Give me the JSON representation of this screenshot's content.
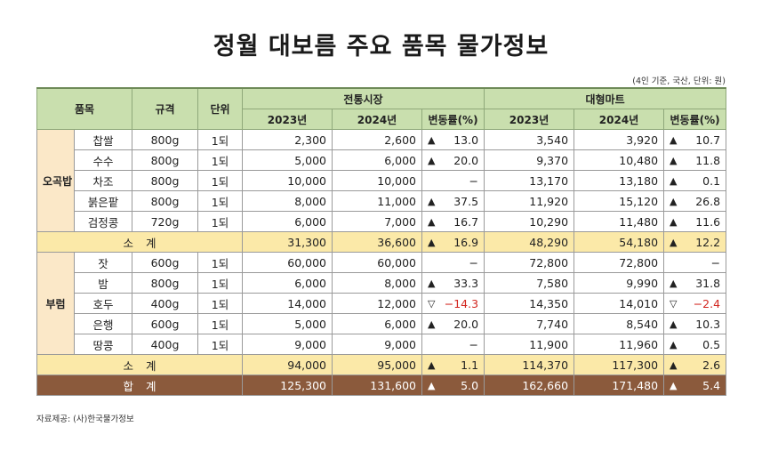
{
  "title": "정월 대보름 주요 품목 물가정보",
  "unit_note": "(4인 기준, 국산, 단위: 원)",
  "source": "자료제공: (사)한국물가정보",
  "headers": {
    "item": "품목",
    "spec": "규격",
    "unit": "단위",
    "market": "전통시장",
    "mart": "대형마트",
    "y2023": "2023년",
    "y2024": "2024년",
    "change": "변동률(%)"
  },
  "groups": [
    {
      "name": "오곡밥",
      "rows": [
        {
          "item": "찹쌀",
          "spec": "800g",
          "unit": "1되",
          "m2023": "2,300",
          "m2024": "2,600",
          "m_arrow": "▲",
          "m_chg": "13.0",
          "t2023": "3,540",
          "t2024": "3,920",
          "t_arrow": "▲",
          "t_chg": "10.7"
        },
        {
          "item": "수수",
          "spec": "800g",
          "unit": "1되",
          "m2023": "5,000",
          "m2024": "6,000",
          "m_arrow": "▲",
          "m_chg": "20.0",
          "t2023": "9,370",
          "t2024": "10,480",
          "t_arrow": "▲",
          "t_chg": "11.8"
        },
        {
          "item": "차조",
          "spec": "800g",
          "unit": "1되",
          "m2023": "10,000",
          "m2024": "10,000",
          "m_arrow": "",
          "m_chg": "−",
          "t2023": "13,170",
          "t2024": "13,180",
          "t_arrow": "▲",
          "t_chg": "0.1"
        },
        {
          "item": "붉은팥",
          "spec": "800g",
          "unit": "1되",
          "m2023": "8,000",
          "m2024": "11,000",
          "m_arrow": "▲",
          "m_chg": "37.5",
          "t2023": "11,920",
          "t2024": "15,120",
          "t_arrow": "▲",
          "t_chg": "26.8"
        },
        {
          "item": "검정콩",
          "spec": "720g",
          "unit": "1되",
          "m2023": "6,000",
          "m2024": "7,000",
          "m_arrow": "▲",
          "m_chg": "16.7",
          "t2023": "10,290",
          "t2024": "11,480",
          "t_arrow": "▲",
          "t_chg": "11.6"
        }
      ],
      "subtotal": {
        "label": "소계",
        "m2023": "31,300",
        "m2024": "36,600",
        "m_arrow": "▲",
        "m_chg": "16.9",
        "t2023": "48,290",
        "t2024": "54,180",
        "t_arrow": "▲",
        "t_chg": "12.2"
      }
    },
    {
      "name": "부럼",
      "rows": [
        {
          "item": "잣",
          "spec": "600g",
          "unit": "1되",
          "m2023": "60,000",
          "m2024": "60,000",
          "m_arrow": "",
          "m_chg": "−",
          "t2023": "72,800",
          "t2024": "72,800",
          "t_arrow": "",
          "t_chg": "−"
        },
        {
          "item": "밤",
          "spec": "800g",
          "unit": "1되",
          "m2023": "6,000",
          "m2024": "8,000",
          "m_arrow": "▲",
          "m_chg": "33.3",
          "t2023": "7,580",
          "t2024": "9,990",
          "t_arrow": "▲",
          "t_chg": "31.8"
        },
        {
          "item": "호두",
          "spec": "400g",
          "unit": "1되",
          "m2023": "14,000",
          "m2024": "12,000",
          "m_arrow": "▽",
          "m_chg": "−14.3",
          "t2023": "14,350",
          "t2024": "14,010",
          "t_arrow": "▽",
          "t_chg": "−2.4"
        },
        {
          "item": "은행",
          "spec": "600g",
          "unit": "1되",
          "m2023": "5,000",
          "m2024": "6,000",
          "m_arrow": "▲",
          "m_chg": "20.0",
          "t2023": "7,740",
          "t2024": "8,540",
          "t_arrow": "▲",
          "t_chg": "10.3"
        },
        {
          "item": "땅콩",
          "spec": "400g",
          "unit": "1되",
          "m2023": "9,000",
          "m2024": "9,000",
          "m_arrow": "",
          "m_chg": "−",
          "t2023": "11,900",
          "t2024": "11,960",
          "t_arrow": "▲",
          "t_chg": "0.5"
        }
      ],
      "subtotal": {
        "label": "소계",
        "m2023": "94,000",
        "m2024": "95,000",
        "m_arrow": "▲",
        "m_chg": "1.1",
        "t2023": "114,370",
        "t2024": "117,300",
        "t_arrow": "▲",
        "t_chg": "2.6"
      }
    }
  ],
  "total": {
    "label": "합계",
    "m2023": "125,300",
    "m2024": "131,600",
    "m_arrow": "▲",
    "m_chg": "5.0",
    "t2023": "162,660",
    "t2024": "171,480",
    "t_arrow": "▲",
    "t_chg": "5.4"
  },
  "colors": {
    "header_green": "#c9dfae",
    "group_cell": "#fbe8c8",
    "subtotal_yellow": "#fbe9a8",
    "total_brown": "#8b5a3c",
    "negative_red": "#d2261f"
  }
}
